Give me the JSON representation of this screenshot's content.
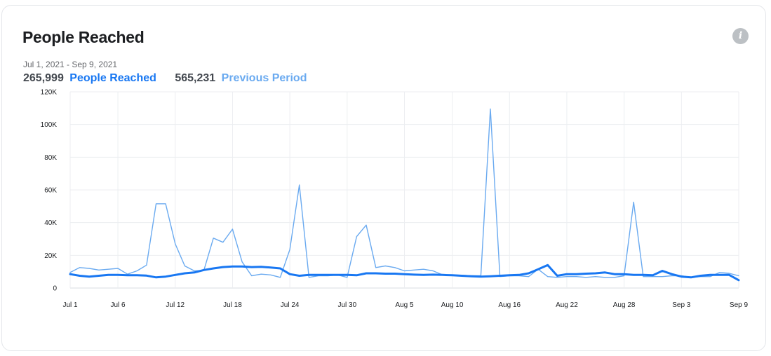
{
  "card": {
    "title": "People Reached",
    "info_icon": "info-icon"
  },
  "date_range": "Jul 1, 2021 - Sep 9, 2021",
  "metrics": [
    {
      "value": "265,999",
      "label": "People Reached",
      "color": "#1877f2"
    },
    {
      "value": "565,231",
      "label": "Previous Period",
      "color": "#6aaaf0"
    }
  ],
  "chart_data": {
    "type": "line",
    "x": [
      "Jul 1",
      "Jul 2",
      "Jul 3",
      "Jul 4",
      "Jul 5",
      "Jul 6",
      "Jul 7",
      "Jul 8",
      "Jul 9",
      "Jul 10",
      "Jul 11",
      "Jul 12",
      "Jul 13",
      "Jul 14",
      "Jul 15",
      "Jul 16",
      "Jul 17",
      "Jul 18",
      "Jul 19",
      "Jul 20",
      "Jul 21",
      "Jul 22",
      "Jul 23",
      "Jul 24",
      "Jul 25",
      "Jul 26",
      "Jul 27",
      "Jul 28",
      "Jul 29",
      "Jul 30",
      "Jul 31",
      "Aug 1",
      "Aug 2",
      "Aug 3",
      "Aug 4",
      "Aug 5",
      "Aug 6",
      "Aug 7",
      "Aug 8",
      "Aug 9",
      "Aug 10",
      "Aug 11",
      "Aug 12",
      "Aug 13",
      "Aug 14",
      "Aug 15",
      "Aug 16",
      "Aug 17",
      "Aug 18",
      "Aug 19",
      "Aug 20",
      "Aug 21",
      "Aug 22",
      "Aug 23",
      "Aug 24",
      "Aug 25",
      "Aug 26",
      "Aug 27",
      "Aug 28",
      "Aug 29",
      "Aug 30",
      "Aug 31",
      "Sep 1",
      "Sep 2",
      "Sep 3",
      "Sep 4",
      "Sep 5",
      "Sep 6",
      "Sep 7",
      "Sep 8",
      "Sep 9"
    ],
    "tick_labels": [
      "Jul 1",
      "Jul 6",
      "Jul 12",
      "Jul 18",
      "Jul 24",
      "Jul 30",
      "Aug 5",
      "Aug 10",
      "Aug 16",
      "Aug 22",
      "Aug 28",
      "Sep 3",
      "Sep 9"
    ],
    "y_ticks": [
      "0",
      "20K",
      "40K",
      "60K",
      "80K",
      "100K",
      "120K"
    ],
    "ylim": [
      0,
      120000
    ],
    "grid": true,
    "series": [
      {
        "name": "People Reached",
        "color": "#1877f2",
        "values": [
          8500,
          7500,
          7000,
          7500,
          8000,
          8000,
          7800,
          7800,
          7600,
          6500,
          7000,
          8000,
          9000,
          9500,
          11000,
          12000,
          12800,
          13200,
          13200,
          12800,
          13000,
          12500,
          12000,
          8500,
          7500,
          8000,
          8000,
          8000,
          8000,
          8000,
          7800,
          9000,
          9000,
          8800,
          8800,
          8500,
          8200,
          8000,
          8200,
          8000,
          7800,
          7500,
          7200,
          7000,
          7200,
          7500,
          7800,
          8000,
          9000,
          11500,
          14000,
          7500,
          8500,
          8500,
          8800,
          9000,
          9500,
          8500,
          8500,
          8000,
          8000,
          7800,
          10500,
          8500,
          7000,
          6500,
          7500,
          8000,
          8000,
          8000,
          4800
        ]
      },
      {
        "name": "Previous Period",
        "color": "#6aaaf0",
        "values": [
          9500,
          12500,
          12000,
          11000,
          11500,
          12000,
          8500,
          10500,
          14000,
          51500,
          51500,
          27000,
          13500,
          10500,
          10800,
          30500,
          28000,
          36000,
          16000,
          7500,
          8500,
          8000,
          6500,
          23500,
          63000,
          6500,
          7500,
          7500,
          8000,
          6500,
          31500,
          38500,
          12500,
          13500,
          12500,
          10500,
          11000,
          11500,
          10500,
          8000,
          8000,
          7800,
          7500,
          7500,
          109500,
          7000,
          7500,
          7500,
          7000,
          11500,
          7000,
          6500,
          7000,
          7000,
          6500,
          7000,
          6500,
          6500,
          7500,
          52500,
          7000,
          7000,
          7000,
          7500,
          7500,
          6500,
          7000,
          7000,
          9500,
          9000,
          7500
        ]
      }
    ]
  }
}
